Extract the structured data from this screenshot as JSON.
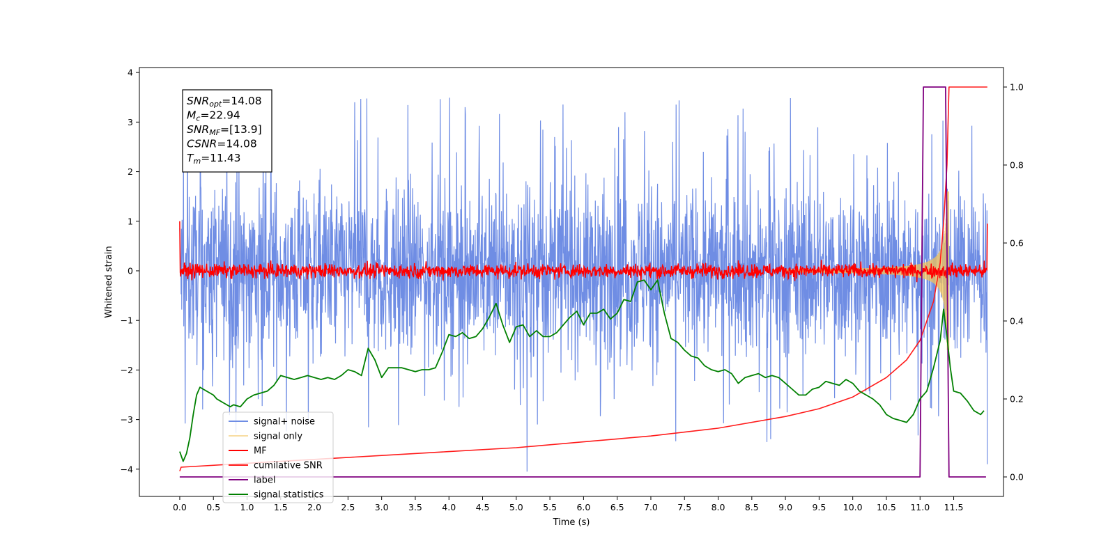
{
  "chart_data": {
    "type": "line",
    "xlabel": "Time (s)",
    "ylabel": "Whitened strain",
    "xlim": [
      -0.6,
      12.24
    ],
    "ylim": [
      -4.55,
      4.1
    ],
    "y2lim": [
      -0.05,
      1.05
    ],
    "x_ticks": [
      "0.0",
      "0.5",
      "1.0",
      "1.5",
      "2.0",
      "2.5",
      "3.0",
      "3.5",
      "4.0",
      "4.5",
      "5.0",
      "5.5",
      "6.0",
      "6.5",
      "7.0",
      "7.5",
      "8.0",
      "8.5",
      "9.0",
      "9.5",
      "10.0",
      "10.5",
      "11.0",
      "11.5"
    ],
    "y_ticks": [
      "4",
      "3",
      "2",
      "1",
      "0",
      "−1",
      "−2",
      "−3",
      "−4"
    ],
    "y2_ticks": [
      "1.0",
      "0.8",
      "0.6",
      "0.4",
      "0.2",
      "0.0"
    ],
    "grid": false,
    "legend_position": "lower-left",
    "colors": {
      "signal_noise": "#6f8de4",
      "signal_only": "#f2c35a",
      "mf": "#ff0000",
      "cumulative_snr": "#ff1a1a",
      "label": "#800080",
      "signal_statistics": "#008000"
    },
    "legend": [
      "signal+ noise",
      "signal only",
      "MF",
      "cumilative SNR",
      "label",
      "signal statistics"
    ],
    "series": [
      {
        "name": "signal+ noise",
        "axis": "left",
        "kind": "noise",
        "x_range": [
          0.0,
          12.0
        ],
        "mean": 0,
        "upper_envelope": 2.2,
        "lower_envelope": -2.2,
        "max_spike": 3.6,
        "min_spike": -4.1
      },
      {
        "name": "signal only",
        "axis": "left",
        "kind": "chirp",
        "x_range": [
          9.0,
          11.43
        ],
        "peak_amplitude": 1.6,
        "merger_time": 11.43
      },
      {
        "name": "MF",
        "axis": "left",
        "kind": "noise",
        "x_range": [
          0.0,
          12.0
        ],
        "mean": 0,
        "band": 0.12,
        "start_value": 1.0,
        "end_value": 0.95
      },
      {
        "name": "cumilative SNR",
        "axis": "right",
        "x": [
          0.0,
          0.02,
          1.0,
          2.0,
          3.0,
          4.0,
          5.0,
          6.0,
          7.0,
          8.0,
          9.0,
          9.5,
          10.0,
          10.5,
          10.8,
          11.0,
          11.2,
          11.3,
          11.35,
          11.4,
          11.43,
          12.0
        ],
        "y": [
          0.015,
          0.025,
          0.035,
          0.045,
          0.055,
          0.065,
          0.075,
          0.09,
          0.105,
          0.125,
          0.155,
          0.175,
          0.205,
          0.255,
          0.3,
          0.35,
          0.45,
          0.55,
          0.65,
          0.8,
          1.0,
          1.0
        ]
      },
      {
        "name": "label",
        "axis": "right",
        "x": [
          0.0,
          11.0,
          11.05,
          11.38,
          11.43,
          11.98
        ],
        "y": [
          0.0,
          0.0,
          1.0,
          1.0,
          0.0,
          0.0
        ]
      },
      {
        "name": "signal statistics",
        "axis": "right",
        "x": [
          0.0,
          0.05,
          0.1,
          0.15,
          0.2,
          0.25,
          0.3,
          0.35,
          0.4,
          0.45,
          0.5,
          0.55,
          0.6,
          0.65,
          0.7,
          0.75,
          0.8,
          0.9,
          1.0,
          1.1,
          1.2,
          1.3,
          1.4,
          1.5,
          1.6,
          1.7,
          1.8,
          1.9,
          2.0,
          2.1,
          2.2,
          2.3,
          2.4,
          2.5,
          2.6,
          2.7,
          2.8,
          2.9,
          3.0,
          3.1,
          3.2,
          3.3,
          3.4,
          3.5,
          3.6,
          3.7,
          3.8,
          3.9,
          4.0,
          4.1,
          4.2,
          4.3,
          4.4,
          4.5,
          4.6,
          4.7,
          4.8,
          4.9,
          5.0,
          5.1,
          5.2,
          5.3,
          5.4,
          5.5,
          5.6,
          5.7,
          5.8,
          5.9,
          6.0,
          6.1,
          6.2,
          6.3,
          6.4,
          6.5,
          6.6,
          6.7,
          6.8,
          6.9,
          7.0,
          7.1,
          7.2,
          7.3,
          7.4,
          7.5,
          7.6,
          7.7,
          7.8,
          7.9,
          8.0,
          8.1,
          8.2,
          8.3,
          8.4,
          8.5,
          8.6,
          8.7,
          8.8,
          8.9,
          9.0,
          9.1,
          9.2,
          9.3,
          9.4,
          9.5,
          9.6,
          9.7,
          9.8,
          9.9,
          10.0,
          10.1,
          10.2,
          10.3,
          10.4,
          10.5,
          10.6,
          10.7,
          10.8,
          10.9,
          11.0,
          11.1,
          11.2,
          11.3,
          11.35,
          11.4,
          11.45,
          11.5,
          11.6,
          11.7,
          11.8,
          11.9,
          11.95
        ],
        "y": [
          0.065,
          0.04,
          0.06,
          0.1,
          0.16,
          0.21,
          0.23,
          0.225,
          0.22,
          0.215,
          0.21,
          0.2,
          0.195,
          0.19,
          0.185,
          0.18,
          0.185,
          0.18,
          0.2,
          0.21,
          0.215,
          0.22,
          0.235,
          0.26,
          0.255,
          0.25,
          0.255,
          0.26,
          0.255,
          0.25,
          0.255,
          0.25,
          0.26,
          0.275,
          0.27,
          0.26,
          0.33,
          0.3,
          0.255,
          0.28,
          0.28,
          0.28,
          0.275,
          0.27,
          0.275,
          0.275,
          0.28,
          0.32,
          0.365,
          0.36,
          0.37,
          0.355,
          0.36,
          0.38,
          0.41,
          0.445,
          0.39,
          0.345,
          0.385,
          0.39,
          0.36,
          0.375,
          0.36,
          0.36,
          0.37,
          0.39,
          0.41,
          0.425,
          0.39,
          0.42,
          0.42,
          0.43,
          0.405,
          0.42,
          0.455,
          0.45,
          0.5,
          0.505,
          0.48,
          0.505,
          0.42,
          0.355,
          0.345,
          0.325,
          0.31,
          0.305,
          0.285,
          0.275,
          0.27,
          0.275,
          0.265,
          0.24,
          0.255,
          0.26,
          0.265,
          0.255,
          0.26,
          0.255,
          0.24,
          0.225,
          0.21,
          0.21,
          0.225,
          0.23,
          0.245,
          0.24,
          0.235,
          0.25,
          0.24,
          0.22,
          0.21,
          0.2,
          0.185,
          0.16,
          0.15,
          0.145,
          0.14,
          0.16,
          0.2,
          0.22,
          0.28,
          0.35,
          0.43,
          0.36,
          0.28,
          0.22,
          0.215,
          0.195,
          0.17,
          0.16,
          0.17
        ]
      }
    ],
    "annotation": {
      "lines": [
        {
          "base": "SNR",
          "sub": "opt",
          "value": "=14.08"
        },
        {
          "base": "M",
          "sub": "c",
          "value": "=22.94"
        },
        {
          "base": "SNR",
          "sub": "MF",
          "value": "=[13.9]"
        },
        {
          "base": "CSNR",
          "sub": "",
          "value": "=14.08"
        },
        {
          "base": "T",
          "sub": "m",
          "value": "=11.43"
        }
      ]
    }
  }
}
